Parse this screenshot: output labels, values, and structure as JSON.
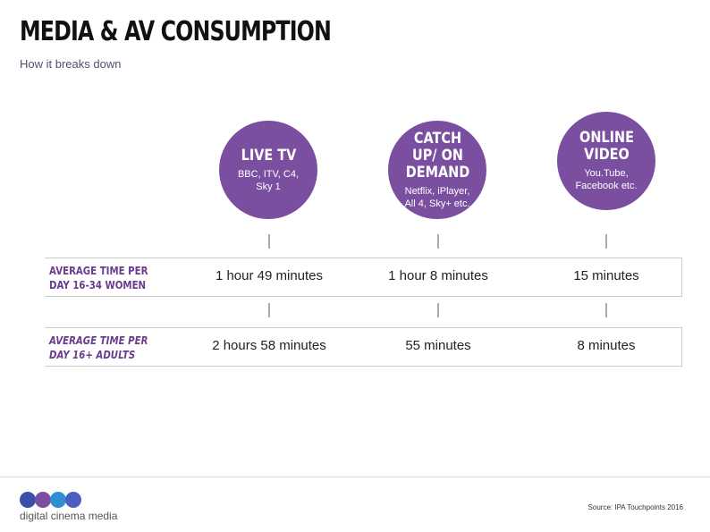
{
  "header": {
    "title": "MEDIA & AV CONSUMPTION",
    "subtitle": "How it breaks down"
  },
  "columns": [
    {
      "title": "LIVE TV",
      "subtitle": "BBC, ITV, C4, Sky 1"
    },
    {
      "title": "CATCH UP/ ON DEMAND",
      "subtitle": "Netflix, iPlayer, All 4, Sky+ etc."
    },
    {
      "title": "ONLINE VIDEO",
      "subtitle": "You.Tube, Facebook etc."
    }
  ],
  "table": {
    "rows": [
      {
        "label": "AVERAGE TIME PER DAY 16-34 WOMEN",
        "cells": [
          "1 hour 49 minutes",
          "1 hour 8 minutes",
          "15 minutes"
        ]
      },
      {
        "label": "AVERAGE TIME PER DAY 16+ ADULTS",
        "cells": [
          "2 hours 58 minutes",
          "55 minutes",
          "8 minutes"
        ]
      }
    ]
  },
  "footer": {
    "source": "Source: IPA Touchpoints 2016",
    "logo": "digital cinema media"
  }
}
